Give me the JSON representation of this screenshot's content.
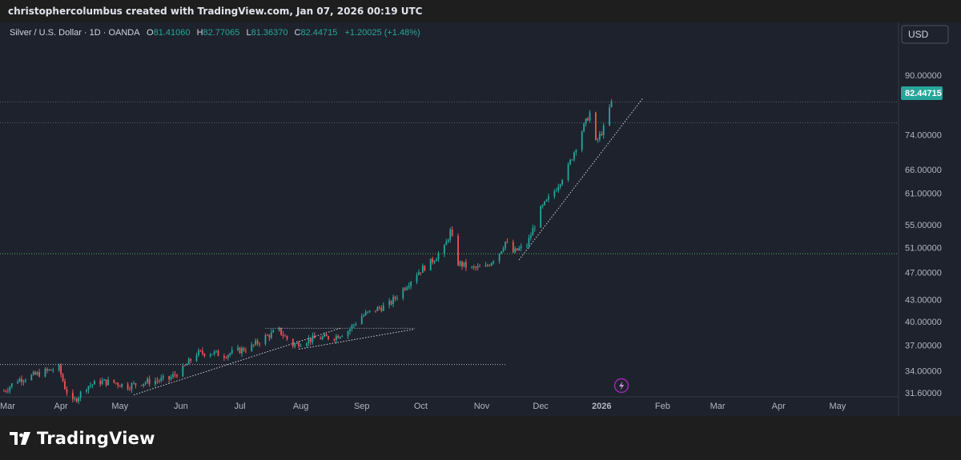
{
  "header": {
    "title": "christophercolumbus created with TradingView.com, Jan 07, 2026 00:19 UTC"
  },
  "legend": {
    "symbol": "Silver / U.S. Dollar · 1D · OANDA",
    "o_label": "O",
    "o_value": "81.41060",
    "h_label": "H",
    "h_value": "82.77065",
    "l_label": "L",
    "l_value": "81.36370",
    "c_label": "C",
    "c_value": "82.44715",
    "change": "+1.20025 (+1.48%)"
  },
  "currency": "USD",
  "last_price": "82.44715",
  "footer": {
    "brand": "TradingView"
  },
  "colors": {
    "up": "#26a69a",
    "down": "#ef5350",
    "background": "#1e222d",
    "accent": "#2962ff",
    "last_price_bg": "#26a69a"
  },
  "chart_data": {
    "type": "candlestick",
    "scale": "log",
    "ylim": [
      31.2,
      99
    ],
    "y_ticks": [
      "90.00000",
      "82.44715",
      "74.00000",
      "66.00000",
      "61.00000",
      "55.00000",
      "51.00000",
      "47.00000",
      "43.00000",
      "40.00000",
      "37.00000",
      "34.00000",
      "31.60000"
    ],
    "x_ticks": [
      "Mar",
      "Apr",
      "May",
      "Jun",
      "Jul",
      "Aug",
      "Sep",
      "Oct",
      "Nov",
      "Dec",
      "2026",
      "Feb",
      "Mar",
      "Apr",
      "May"
    ],
    "x_range": [
      "2025-03-01",
      "2026-06-01"
    ],
    "closes": [
      [
        "2025-03-03",
        31.8
      ],
      [
        "2025-03-10",
        33.0
      ],
      [
        "2025-03-17",
        33.4
      ],
      [
        "2025-03-24",
        33.9
      ],
      [
        "2025-03-31",
        34.3
      ],
      [
        "2025-04-03",
        32.2
      ],
      [
        "2025-04-07",
        30.6
      ],
      [
        "2025-04-14",
        32.3
      ],
      [
        "2025-04-21",
        32.8
      ],
      [
        "2025-04-28",
        32.7
      ],
      [
        "2025-05-05",
        32.3
      ],
      [
        "2025-05-12",
        32.7
      ],
      [
        "2025-05-19",
        32.9
      ],
      [
        "2025-05-26",
        33.1
      ],
      [
        "2025-06-02",
        34.2
      ],
      [
        "2025-06-09",
        36.0
      ],
      [
        "2025-06-16",
        36.1
      ],
      [
        "2025-06-23",
        35.8
      ],
      [
        "2025-06-30",
        36.3
      ],
      [
        "2025-07-07",
        36.8
      ],
      [
        "2025-07-14",
        38.0
      ],
      [
        "2025-07-21",
        38.8
      ],
      [
        "2025-07-28",
        37.0
      ],
      [
        "2025-08-04",
        37.6
      ],
      [
        "2025-08-11",
        37.9
      ],
      [
        "2025-08-18",
        38.0
      ],
      [
        "2025-08-25",
        38.8
      ],
      [
        "2025-09-01",
        40.7
      ],
      [
        "2025-09-08",
        41.6
      ],
      [
        "2025-09-15",
        42.3
      ],
      [
        "2025-09-22",
        44.5
      ],
      [
        "2025-09-29",
        46.9
      ],
      [
        "2025-10-06",
        48.6
      ],
      [
        "2025-10-13",
        50.9
      ],
      [
        "2025-10-16",
        53.8
      ],
      [
        "2025-10-20",
        48.5
      ],
      [
        "2025-10-27",
        47.6
      ],
      [
        "2025-11-03",
        47.8
      ],
      [
        "2025-11-10",
        50.2
      ],
      [
        "2025-11-13",
        52.0
      ],
      [
        "2025-11-17",
        50.2
      ],
      [
        "2025-11-24",
        51.5
      ],
      [
        "2025-12-01",
        57.8
      ],
      [
        "2025-12-08",
        61.5
      ],
      [
        "2025-12-15",
        66.5
      ],
      [
        "2025-12-22",
        75.0
      ],
      [
        "2025-12-26",
        79.5
      ],
      [
        "2025-12-29",
        72.0
      ],
      [
        "2026-01-02",
        75.5
      ],
      [
        "2026-01-06",
        82.44715
      ]
    ],
    "annotations": {
      "horizontal_levels": [
        82.44715,
        77.0,
        50.0
      ],
      "range_lines": [
        [
          39.1,
          "2025-07-14",
          "2025-09-28"
        ],
        [
          34.7,
          "2025-03-01",
          "2025-11-13"
        ]
      ],
      "trendlines": [
        [
          [
            "2025-05-08",
            31.4
          ],
          [
            "2025-08-21",
            39.1
          ]
        ],
        [
          [
            "2025-07-31",
            36.5
          ],
          [
            "2025-09-28",
            39.0
          ]
        ],
        [
          [
            "2025-11-20",
            49.0
          ],
          [
            "2026-01-22",
            83.5
          ]
        ]
      ]
    }
  }
}
